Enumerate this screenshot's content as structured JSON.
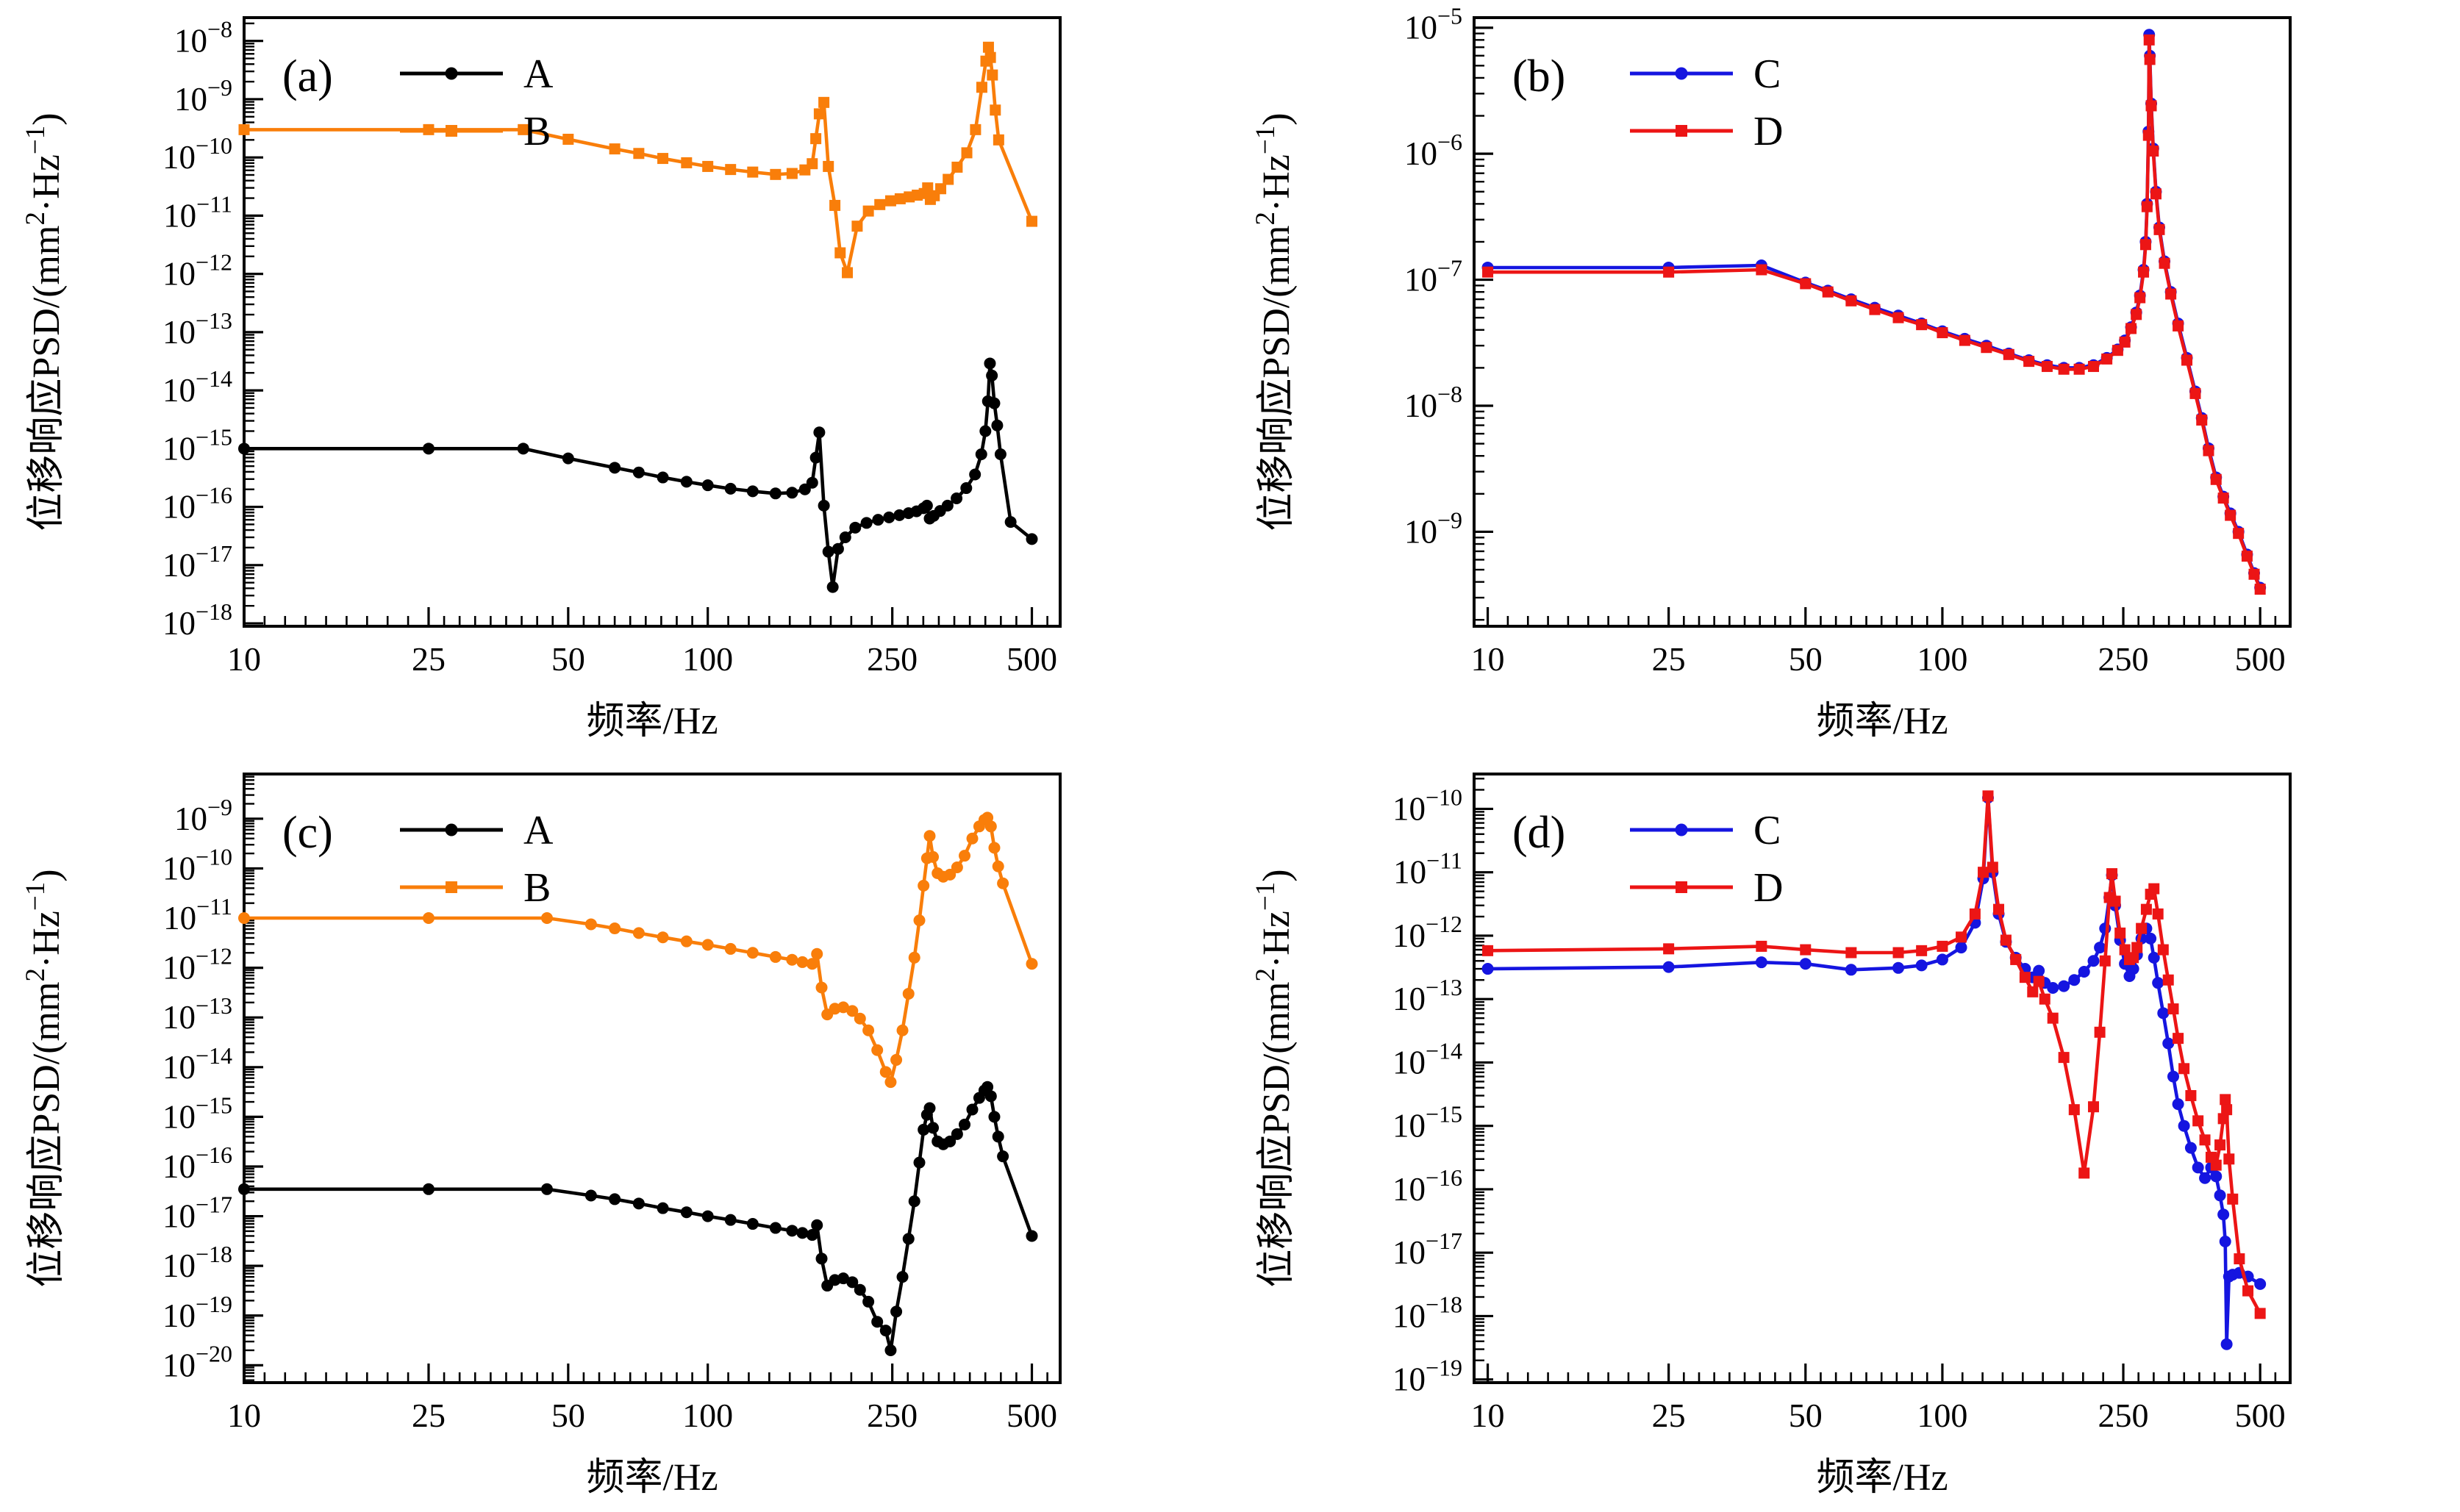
{
  "figure": {
    "background": "#ffffff",
    "x_axis_label": "频率/Hz",
    "y_axis_label": "位移响应PSD/(mm²·Hz⁻¹)",
    "y_label_parts": {
      "p1": "位移响应PSD/(mm",
      "sup1": "2",
      "p2": "·Hz",
      "sup2": "−1",
      "p3": ")"
    }
  },
  "chart_data": [
    {
      "type": "line",
      "panel_tag": "(a)",
      "xlabel": "频率/Hz",
      "ylabel": "位移响应PSD/(mm²·Hz⁻¹)",
      "x_scale": "log",
      "y_scale": "log",
      "grid": false,
      "x_ticks": [
        10,
        25,
        50,
        100,
        250,
        500
      ],
      "y_tick_exponents": [
        -8,
        -9,
        -10,
        -11,
        -12,
        -13,
        -14,
        -15,
        -16,
        -17,
        -18
      ],
      "x_range_log": [
        1.0,
        2.76
      ],
      "y_range_log": [
        -18.05,
        -7.6
      ],
      "legend_position": "top-left",
      "series": [
        {
          "name": "A",
          "color": "#000000",
          "marker": "circle",
          "x": [
            10,
            25,
            40,
            50,
            63,
            71,
            80,
            90,
            100,
            112,
            125,
            140,
            152,
            162,
            168,
            171,
            174,
            178,
            182,
            186,
            191,
            198,
            208,
            220,
            233,
            246,
            259,
            271,
            282,
            292,
            297,
            301,
            307,
            317,
            329,
            344,
            361,
            377,
            389,
            397,
            402,
            406,
            410,
            415,
            421,
            428,
            450,
            500
          ],
          "y": [
            1e-15,
            1e-15,
            1e-15,
            6.8e-16,
            4.7e-16,
            3.9e-16,
            3.2e-16,
            2.7e-16,
            2.35e-16,
            2.05e-16,
            1.85e-16,
            1.7e-16,
            1.75e-16,
            2e-16,
            2.6e-16,
            7e-16,
            1.9e-15,
            1.05e-16,
            1.7e-17,
            4.2e-18,
            1.9e-17,
            3e-17,
            4.4e-17,
            5.3e-17,
            6e-17,
            6.6e-17,
            7.2e-17,
            7.8e-17,
            8.4e-17,
            9.5e-17,
            1.05e-16,
            6.3e-17,
            7e-17,
            8.5e-17,
            1.05e-16,
            1.4e-16,
            2.1e-16,
            3.6e-16,
            8e-16,
            2e-15,
            6.5e-15,
            2.9e-14,
            1.8e-14,
            6e-15,
            2.5e-15,
            8e-16,
            5.5e-17,
            2.8e-17
          ]
        },
        {
          "name": "B",
          "color": "#F97E0A",
          "marker": "square",
          "x": [
            10,
            25,
            40,
            50,
            63,
            71,
            80,
            90,
            100,
            112,
            125,
            140,
            152,
            162,
            168,
            171,
            174,
            178,
            182,
            188,
            193,
            200,
            210,
            222,
            235,
            248,
            260,
            272,
            283,
            293,
            298,
            302,
            308,
            318,
            330,
            345,
            362,
            378,
            390,
            398,
            403,
            407,
            411,
            417,
            424,
            500
          ],
          "y": [
            3e-10,
            3e-10,
            3e-10,
            2.05e-10,
            1.4e-10,
            1.17e-10,
            9.6e-11,
            8.1e-11,
            7e-11,
            6.2e-11,
            5.6e-11,
            5.1e-11,
            5.3e-11,
            6.1e-11,
            7.8e-11,
            2.1e-10,
            5.6e-10,
            8.8e-10,
            7e-11,
            1.5e-11,
            2.3e-12,
            1.05e-12,
            6.6e-12,
            1.2e-11,
            1.55e-11,
            1.8e-11,
            1.95e-11,
            2.1e-11,
            2.25e-11,
            2.4e-11,
            3e-11,
            1.9e-11,
            2.2e-11,
            2.9e-11,
            4.2e-11,
            6.8e-11,
            1.2e-10,
            3e-10,
            1.6e-09,
            4.5e-09,
            7.8e-09,
            5.2e-09,
            2.6e-09,
            6.5e-10,
            2e-10,
            8e-12
          ]
        }
      ]
    },
    {
      "type": "line",
      "panel_tag": "(b)",
      "xlabel": "频率/Hz",
      "ylabel": "位移响应PSD/(mm²·Hz⁻¹)",
      "x_scale": "log",
      "y_scale": "log",
      "grid": false,
      "x_ticks": [
        10,
        25,
        50,
        100,
        250,
        500
      ],
      "y_tick_exponents": [
        -5,
        -6,
        -7,
        -8,
        -9
      ],
      "x_range_log": [
        0.97,
        2.765
      ],
      "y_range_log": [
        -9.75,
        -4.92
      ],
      "legend_position": "top-left",
      "series": [
        {
          "name": "C",
          "color": "#1515E0",
          "marker": "circle",
          "x": [
            10,
            25,
            40,
            50,
            56,
            63,
            71,
            80,
            90,
            100,
            112,
            125,
            140,
            155,
            170,
            185,
            200,
            215,
            230,
            243,
            252,
            260,
            267,
            272,
            277,
            280,
            282,
            284,
            285,
            286,
            288,
            291,
            295,
            300,
            308,
            318,
            330,
            345,
            360,
            372,
            385,
            400,
            415,
            430,
            448,
            468,
            485,
            500
          ],
          "y": [
            1.25e-07,
            1.25e-07,
            1.3e-07,
            9.5e-08,
            8.2e-08,
            7e-08,
            6e-08,
            5.2e-08,
            4.5e-08,
            3.9e-08,
            3.4e-08,
            3e-08,
            2.6e-08,
            2.3e-08,
            2.1e-08,
            2e-08,
            2e-08,
            2.1e-08,
            2.4e-08,
            2.8e-08,
            3.3e-08,
            4.2e-08,
            5.5e-08,
            7.5e-08,
            1.2e-07,
            2e-07,
            4e-07,
            1.5e-06,
            8.8e-06,
            6e-06,
            2.5e-06,
            1.1e-06,
            5e-07,
            2.6e-07,
            1.4e-07,
            8e-08,
            4.5e-08,
            2.4e-08,
            1.3e-08,
            8e-09,
            4.6e-09,
            2.7e-09,
            1.9e-09,
            1.4e-09,
            1e-09,
            6.6e-10,
            4.7e-10,
            3.6e-10
          ]
        },
        {
          "name": "D",
          "color": "#EC1515",
          "marker": "square",
          "x": [
            10,
            25,
            40,
            50,
            56,
            63,
            71,
            80,
            90,
            100,
            112,
            125,
            140,
            155,
            170,
            185,
            200,
            215,
            230,
            243,
            252,
            260,
            267,
            272,
            277,
            280,
            282,
            284,
            285,
            286,
            288,
            291,
            295,
            300,
            308,
            318,
            330,
            345,
            360,
            372,
            385,
            400,
            415,
            430,
            448,
            468,
            485,
            500
          ],
          "y": [
            1.15e-07,
            1.15e-07,
            1.2e-07,
            9.3e-08,
            8e-08,
            6.8e-08,
            5.8e-08,
            5e-08,
            4.4e-08,
            3.8e-08,
            3.3e-08,
            2.9e-08,
            2.55e-08,
            2.25e-08,
            2.05e-08,
            1.95e-08,
            1.95e-08,
            2.05e-08,
            2.35e-08,
            2.75e-08,
            3.2e-08,
            4.1e-08,
            5.3e-08,
            7.2e-08,
            1.15e-07,
            1.9e-07,
            3.8e-07,
            1.4e-06,
            8e-06,
            5.6e-06,
            2.4e-06,
            1.05e-06,
            4.8e-07,
            2.5e-07,
            1.35e-07,
            7.7e-08,
            4.3e-08,
            2.3e-08,
            1.25e-08,
            7.7e-09,
            4.4e-09,
            2.6e-09,
            1.85e-09,
            1.35e-09,
            9.7e-10,
            6.4e-10,
            4.6e-10,
            3.5e-10
          ]
        }
      ]
    },
    {
      "type": "line",
      "panel_tag": "(c)",
      "xlabel": "频率/Hz",
      "ylabel": "位移响应PSD/(mm²·Hz⁻¹)",
      "x_scale": "log",
      "y_scale": "log",
      "grid": false,
      "x_ticks": [
        10,
        25,
        50,
        100,
        250,
        500
      ],
      "y_tick_exponents": [
        -9,
        -10,
        -11,
        -12,
        -13,
        -14,
        -15,
        -16,
        -17,
        -18,
        -19,
        -20
      ],
      "x_range_log": [
        1.0,
        2.76
      ],
      "y_range_log": [
        -20.35,
        -8.1
      ],
      "legend_position": "top-left",
      "series": [
        {
          "name": "A",
          "color": "#000000",
          "marker": "circle",
          "x": [
            10,
            25,
            45,
            56,
            63,
            71,
            80,
            90,
            100,
            112,
            125,
            140,
            152,
            160,
            168,
            172,
            176,
            181,
            188,
            196,
            205,
            213,
            222,
            232,
            242,
            248,
            255,
            263,
            271,
            279,
            286,
            292,
            297,
            301,
            306,
            313,
            322,
            333,
            345,
            358,
            372,
            385,
            395,
            401,
            408,
            415,
            423,
            433,
            500
          ],
          "y": [
            3.5e-17,
            3.5e-17,
            3.5e-17,
            2.6e-17,
            2.2e-17,
            1.8e-17,
            1.45e-17,
            1.2e-17,
            1e-17,
            8.4e-18,
            7e-18,
            5.8e-18,
            5.1e-18,
            4.6e-18,
            4.2e-18,
            6.6e-18,
            1.4e-18,
            4e-19,
            5.2e-19,
            5.6e-19,
            4.7e-19,
            3.3e-19,
            1.9e-19,
            7.5e-20,
            5e-20,
            2e-20,
            1.2e-19,
            6e-19,
            3.5e-18,
            2e-17,
            1.2e-16,
            5.5e-16,
            1.1e-15,
            1.5e-15,
            6e-16,
            3.2e-16,
            2.8e-16,
            3.2e-16,
            4.5e-16,
            7e-16,
            1.4e-15,
            2.4e-15,
            3.4e-15,
            4e-15,
            2.6e-15,
            1e-15,
            4e-16,
            1.6e-16,
            4e-18
          ]
        },
        {
          "name": "B",
          "color": "#F97E0A",
          "marker": "circle",
          "legend_marker": "square",
          "x": [
            10,
            25,
            45,
            56,
            63,
            71,
            80,
            90,
            100,
            112,
            125,
            140,
            152,
            160,
            168,
            172,
            176,
            181,
            188,
            196,
            205,
            213,
            222,
            232,
            242,
            248,
            255,
            263,
            271,
            279,
            286,
            292,
            297,
            301,
            306,
            313,
            322,
            333,
            345,
            358,
            372,
            385,
            395,
            401,
            408,
            415,
            423,
            433,
            500
          ],
          "y": [
            1e-11,
            1e-11,
            1e-11,
            7.5e-12,
            6.2e-12,
            5e-12,
            4.1e-12,
            3.4e-12,
            2.9e-12,
            2.4e-12,
            2e-12,
            1.65e-12,
            1.45e-12,
            1.3e-12,
            1.2e-12,
            1.9e-12,
            4e-13,
            1.15e-13,
            1.5e-13,
            1.6e-13,
            1.35e-13,
            9.5e-14,
            5.5e-14,
            2.2e-14,
            8e-15,
            5e-15,
            1.4e-14,
            5.5e-14,
            3e-13,
            1.6e-12,
            9e-12,
            4.5e-11,
            1.6e-10,
            4.5e-10,
            1.7e-10,
            8e-11,
            6.8e-11,
            7.5e-11,
            1.05e-10,
            1.8e-10,
            4e-10,
            7e-10,
            9.5e-10,
            1.05e-09,
            7e-10,
            2.6e-10,
            1.1e-10,
            5e-11,
            1.2e-12
          ]
        }
      ]
    },
    {
      "type": "line",
      "panel_tag": "(d)",
      "xlabel": "频率/Hz",
      "ylabel": "位移响应PSD/(mm²·Hz⁻¹)",
      "x_scale": "log",
      "y_scale": "log",
      "grid": false,
      "x_ticks": [
        10,
        25,
        50,
        100,
        250,
        500
      ],
      "y_tick_exponents": [
        -10,
        -11,
        -12,
        -13,
        -14,
        -15,
        -16,
        -17,
        -18,
        -19
      ],
      "x_range_log": [
        0.97,
        2.765
      ],
      "y_range_log": [
        -19.05,
        -9.45
      ],
      "legend_position": "top-left",
      "series": [
        {
          "name": "C",
          "color": "#1515E0",
          "marker": "circle",
          "x": [
            10,
            25,
            40,
            50,
            63,
            80,
            90,
            100,
            110,
            118,
            123,
            126,
            129,
            133,
            138,
            145,
            152,
            158,
            163,
            168,
            175,
            185,
            195,
            205,
            215,
            222,
            228,
            233,
            236,
            240,
            246,
            252,
            258,
            263,
            268,
            274,
            281,
            287,
            292,
            298,
            306,
            314,
            322,
            330,
            340,
            352,
            365,
            378,
            390,
            400,
            408,
            415,
            419,
            422,
            427,
            435,
            450,
            470,
            500
          ],
          "y": [
            3e-13,
            3.2e-13,
            3.8e-13,
            3.6e-13,
            2.9e-13,
            3.1e-13,
            3.4e-13,
            4.2e-13,
            6.5e-13,
            1.6e-12,
            8e-12,
            1.5e-10,
            1e-11,
            2.2e-12,
            8e-13,
            4.5e-13,
            3e-13,
            2.2e-13,
            2.8e-13,
            1.8e-13,
            1.5e-13,
            1.6e-13,
            2e-13,
            2.7e-13,
            4e-13,
            6.5e-13,
            1.3e-12,
            4e-12,
            9e-12,
            3e-12,
            8.5e-13,
            3.6e-13,
            2.3e-13,
            3e-13,
            5e-13,
            9e-13,
            1.3e-12,
            9e-13,
            4.5e-13,
            1.8e-13,
            6e-14,
            2e-14,
            6e-15,
            2.2e-15,
            1e-15,
            4.5e-16,
            2.2e-16,
            1.5e-16,
            2.2e-16,
            1.6e-16,
            8e-17,
            4e-17,
            1.5e-17,
            3.6e-19,
            4.2e-18,
            4.5e-18,
            4.8e-18,
            4.2e-18,
            3.2e-18
          ]
        },
        {
          "name": "D",
          "color": "#EC1515",
          "marker": "square",
          "x": [
            10,
            25,
            40,
            50,
            63,
            80,
            90,
            100,
            110,
            118,
            123,
            126,
            129,
            133,
            138,
            145,
            152,
            158,
            163,
            168,
            175,
            185,
            195,
            205,
            215,
            222,
            228,
            233,
            236,
            240,
            246,
            252,
            258,
            263,
            268,
            274,
            281,
            287,
            292,
            298,
            306,
            314,
            322,
            330,
            340,
            352,
            365,
            378,
            390,
            400,
            408,
            415,
            419,
            422,
            427,
            435,
            450,
            470,
            500
          ],
          "y": [
            5.8e-13,
            6.2e-13,
            6.8e-13,
            6e-13,
            5.4e-13,
            5.4e-13,
            5.8e-13,
            6.8e-13,
            9.5e-13,
            2.2e-12,
            1e-11,
            1.6e-10,
            1.2e-11,
            2.6e-12,
            8.5e-13,
            4.2e-13,
            2.2e-13,
            1.3e-13,
            1.9e-13,
            1e-13,
            5e-14,
            1.2e-14,
            1.8e-15,
            1.8e-16,
            2e-15,
            3e-14,
            4e-13,
            4e-12,
            9.5e-12,
            3.5e-12,
            1.1e-12,
            6e-13,
            4.2e-13,
            4.5e-13,
            6.5e-13,
            1.3e-12,
            2.6e-12,
            4.5e-12,
            5.5e-12,
            2.2e-12,
            6e-13,
            2e-13,
            7e-14,
            2.4e-14,
            8e-15,
            3e-15,
            1.2e-15,
            6e-16,
            3.2e-16,
            2.4e-16,
            5e-16,
            1.3e-15,
            2.6e-15,
            1.8e-15,
            3e-16,
            7e-17,
            8e-18,
            2.5e-18,
            1.1e-18
          ]
        }
      ]
    }
  ]
}
